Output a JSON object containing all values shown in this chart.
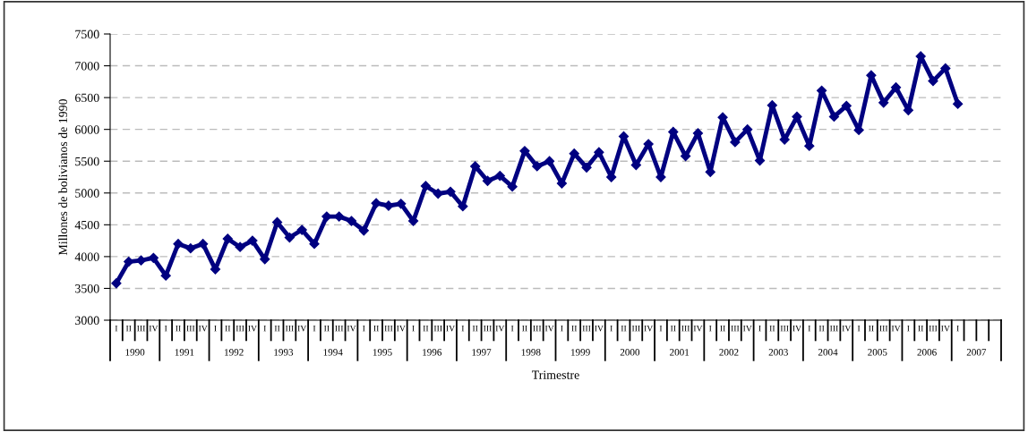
{
  "chart_data": {
    "type": "line",
    "xlabel": "Trimestre",
    "ylabel": "Millones de bolivianos de 1990",
    "categories": [
      "I",
      "II",
      "III",
      "IV",
      "I",
      "II",
      "III",
      "IV",
      "I",
      "II",
      "III",
      "IV",
      "I",
      "II",
      "III",
      "IV",
      "I",
      "II",
      "III",
      "IV",
      "I",
      "II",
      "III",
      "IV",
      "I",
      "II",
      "III",
      "IV",
      "I",
      "II",
      "III",
      "IV",
      "I",
      "II",
      "III",
      "IV",
      "I",
      "II",
      "III",
      "IV",
      "I",
      "II",
      "III",
      "IV",
      "I",
      "II",
      "III",
      "IV",
      "I",
      "II",
      "III",
      "IV",
      "I",
      "II",
      "III",
      "IV",
      "I",
      "II",
      "III",
      "IV",
      "I",
      "II",
      "III",
      "IV",
      "I",
      "II",
      "III",
      "IV",
      "I",
      null,
      null,
      null
    ],
    "series": [
      {
        "color": "#000080",
        "values": [
          3580,
          3920,
          3940,
          3980,
          3700,
          4200,
          4130,
          4200,
          3800,
          4280,
          4150,
          4250,
          3960,
          4540,
          4300,
          4420,
          4200,
          4630,
          4630,
          4560,
          4410,
          4840,
          4800,
          4830,
          4560,
          5110,
          4990,
          5020,
          4790,
          5420,
          5190,
          5270,
          5100,
          5660,
          5420,
          5500,
          5150,
          5620,
          5400,
          5640,
          5250,
          5890,
          5440,
          5770,
          5250,
          5960,
          5580,
          5940,
          5330,
          6190,
          5800,
          6000,
          5510,
          6380,
          5840,
          6200,
          5740,
          6610,
          6200,
          6370,
          5990,
          6850,
          6420,
          6660,
          6300,
          7150,
          6760,
          6960,
          6400,
          null,
          null,
          null
        ]
      }
    ],
    "annotations": [
      "1990",
      "1991",
      "1992",
      "1993",
      "1994",
      "1995",
      "1996",
      "1997",
      "1998",
      "1999",
      "2000",
      "2001",
      "2002",
      "2003",
      "2004",
      "2005",
      "2006",
      "2007"
    ],
    "ylim": [
      3000,
      7500
    ],
    "yticks": [
      3000,
      3500,
      4000,
      4500,
      5000,
      5500,
      6000,
      6500,
      7000,
      7500
    ],
    "grid": "y",
    "marker": "diamond",
    "line_style": "solid",
    "legend": false
  }
}
